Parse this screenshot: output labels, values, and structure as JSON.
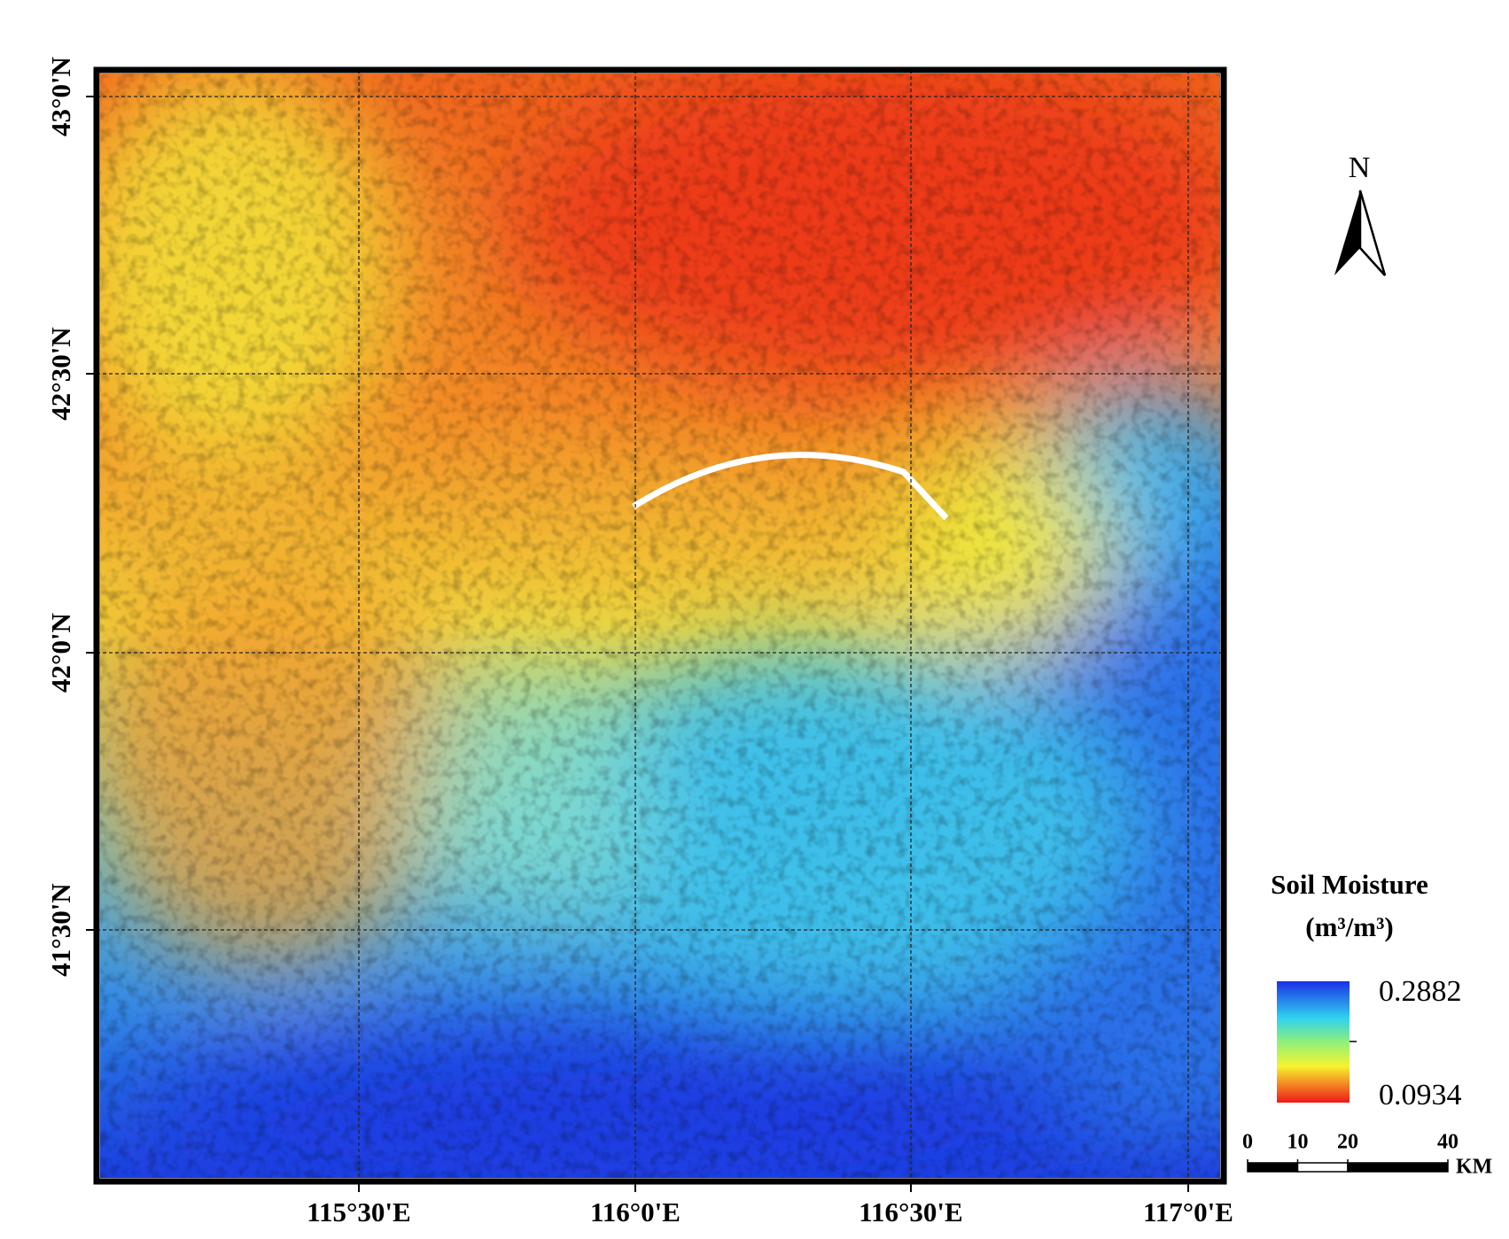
{
  "map": {
    "lat_labels": [
      "43°0'N",
      "42°30'N",
      "42°0'N",
      "41°30'N"
    ],
    "lon_labels": [
      "115°30'E",
      "116°0'E",
      "116°30'E",
      "117°0'E"
    ],
    "north": "N",
    "legend": {
      "title": "Soil Moisture",
      "unit": "(m³/m³)",
      "max": 0.2882,
      "min": 0.0934
    },
    "scale_bar": {
      "ticks": [
        0,
        10,
        20,
        40
      ],
      "unit": "KM"
    }
  }
}
